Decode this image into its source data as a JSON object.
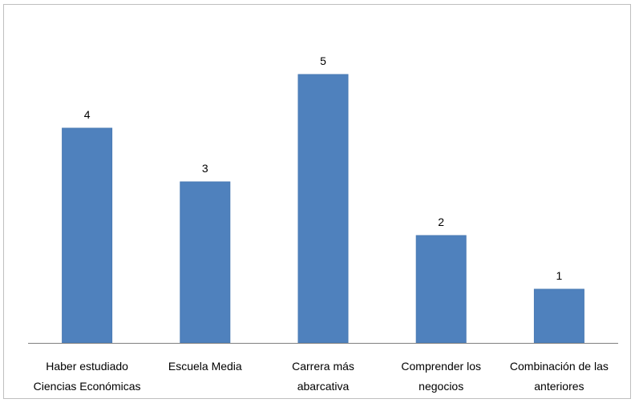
{
  "chart_data": {
    "type": "bar",
    "categories": [
      [
        "Haber estudiado",
        "Ciencias Económicas"
      ],
      [
        "Escuela Media"
      ],
      [
        "Carrera más",
        "abarcativa"
      ],
      [
        "Comprender los",
        "negocios"
      ],
      [
        "Combinación de las",
        "anteriores"
      ]
    ],
    "values": [
      4,
      3,
      5,
      2,
      1
    ],
    "data_labels": [
      "4",
      "3",
      "5",
      "2",
      "1"
    ],
    "title": "",
    "xlabel": "",
    "ylabel": "",
    "ylim": [
      0,
      6
    ],
    "grid": false,
    "legend": "none",
    "colors": {
      "bar": "#4f81bd",
      "bar_edge": "#4a7ab3",
      "axis": "#808080",
      "frame": "#bfbfbf"
    }
  }
}
